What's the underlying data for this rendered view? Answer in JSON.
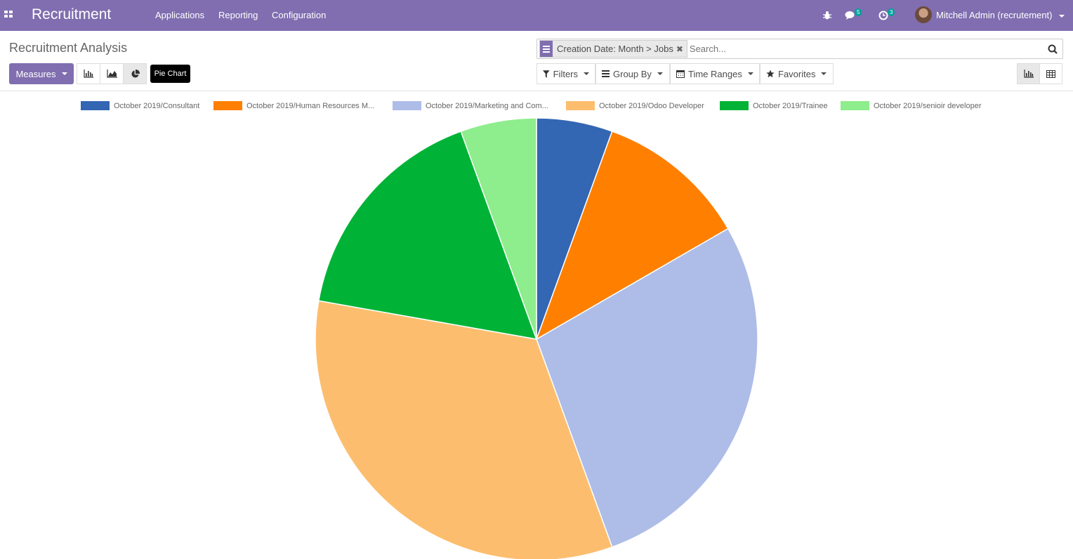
{
  "navbar": {
    "brand": "Recruitment",
    "menu": [
      "Applications",
      "Reporting",
      "Configuration"
    ],
    "messages_count": "5",
    "activities_count": "3",
    "user": "Mitchell Admin (recrutement)"
  },
  "control_panel": {
    "title": "Recruitment Analysis",
    "measures_label": "Measures",
    "tooltip": "Pie Chart",
    "facet_label": "Creation Date: Month > Jobs",
    "search_placeholder": "Search...",
    "filters_label": "Filters",
    "groupby_label": "Group By",
    "time_ranges_label": "Time Ranges",
    "favorites_label": "Favorites"
  },
  "chart_data": {
    "type": "pie",
    "labels": [
      "October 2019/Consultant",
      "October 2019/Human Resources M...",
      "October 2019/Marketing and Com...",
      "October 2019/Odoo Developer",
      "October 2019/Trainee",
      "October 2019/senioir developer"
    ],
    "values": [
      1,
      2,
      5,
      6,
      3,
      1
    ],
    "colors": [
      "#3366b3",
      "#ff7f00",
      "#aebce8",
      "#fcbe6e",
      "#00b336",
      "#8eed8c"
    ],
    "legend_position": "top"
  }
}
